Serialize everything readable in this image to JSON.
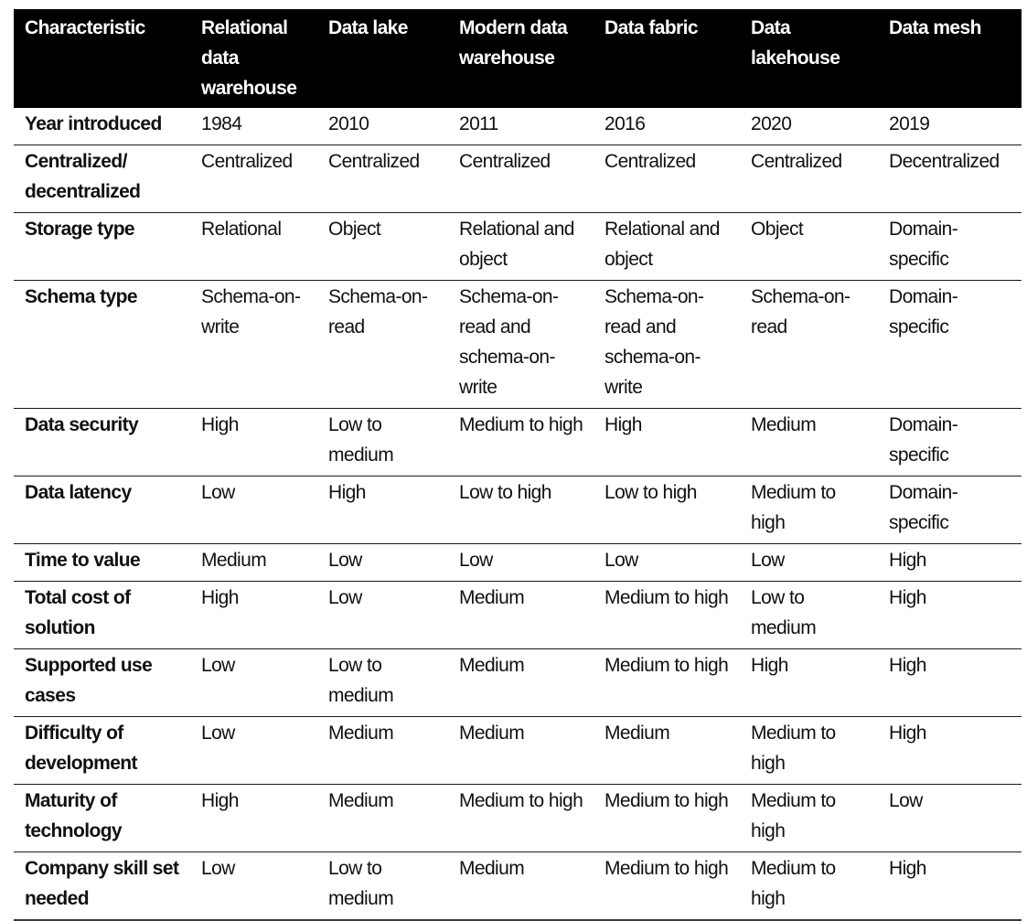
{
  "table": {
    "headers": [
      "Characteristic",
      "Relational\ndata\nwarehouse",
      "Data lake",
      "Modern data\nwarehouse",
      "Data fabric",
      "Data\nlakehouse",
      "Data mesh"
    ],
    "rows": [
      {
        "label": "Year introduced",
        "values": [
          "1984",
          "2010",
          "2011",
          "2016",
          "2020",
          "2019"
        ]
      },
      {
        "label": "Centralized/\ndecentralized",
        "values": [
          "Centralized",
          "Centralized",
          "Centralized",
          "Centralized",
          "Centralized",
          "Decentralized"
        ]
      },
      {
        "label": "Storage type",
        "values": [
          "Relational",
          "Object",
          "Relational and\nobject",
          "Relational and\nobject",
          "Object",
          "Domain-\nspecific"
        ]
      },
      {
        "label": "Schema type",
        "values": [
          "Schema-on-\nwrite",
          "Schema-on-\nread",
          "Schema-on-\nread and\nschema-on-\nwrite",
          "Schema-on-\nread and\nschema-on-\nwrite",
          "Schema-on-\nread",
          "Domain-\nspecific"
        ]
      },
      {
        "label": "Data security",
        "values": [
          "High",
          "Low to\nmedium",
          "Medium to high",
          "High",
          "Medium",
          "Domain-\nspecific"
        ]
      },
      {
        "label": "Data latency",
        "values": [
          "Low",
          "High",
          "Low to high",
          "Low to high",
          "Medium to\nhigh",
          "Domain-\nspecific"
        ]
      },
      {
        "label": "Time to value",
        "values": [
          "Medium",
          "Low",
          "Low",
          "Low",
          "Low",
          "High"
        ]
      },
      {
        "label": "Total cost of\nsolution",
        "values": [
          "High",
          "Low",
          "Medium",
          "Medium to high",
          "Low to\nmedium",
          "High"
        ]
      },
      {
        "label": "Supported use\ncases",
        "values": [
          "Low",
          "Low to\nmedium",
          "Medium",
          "Medium to high",
          "High",
          "High"
        ]
      },
      {
        "label": "Difficulty of\ndevelopment",
        "values": [
          "Low",
          "Medium",
          "Medium",
          "Medium",
          "Medium to\nhigh",
          "High"
        ]
      },
      {
        "label": "Maturity of\ntechnology",
        "values": [
          "High",
          "Medium",
          "Medium to high",
          "Medium to high",
          "Medium to\nhigh",
          "Low"
        ]
      },
      {
        "label": "Company skill set\nneeded",
        "values": [
          "Low",
          "Low to\nmedium",
          "Medium",
          "Medium to high",
          "Medium to\nhigh",
          "High"
        ]
      }
    ]
  },
  "colors": {
    "header_bg": "#000000",
    "header_text": "#ffffff",
    "body_text": "#111111",
    "rule": "#1a1a1a"
  }
}
